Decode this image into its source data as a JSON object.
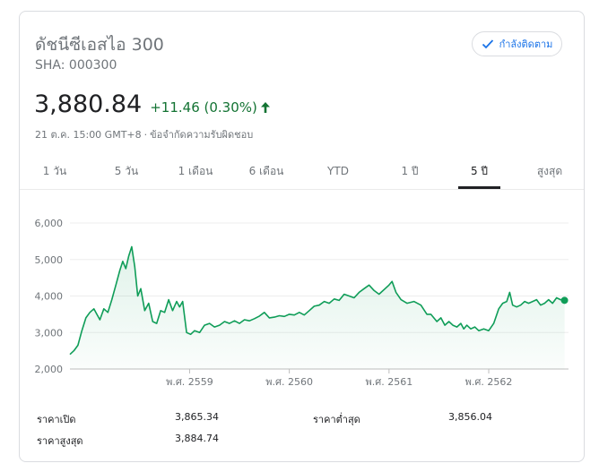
{
  "header": {
    "title": "ดัชนีซีเอสไอ 300",
    "ticker": "SHA: 000300",
    "follow_label": "กำลังติดตาม"
  },
  "quote": {
    "price": "3,880.84",
    "change": "+11.46 (0.30%)",
    "timestamp": "21 ต.ค. 15:00 GMT+8",
    "separator": "·",
    "disclaimer": "ข้อจำกัดความรับผิดชอบ",
    "up_color": "#137333"
  },
  "tabs": [
    {
      "label": "1 วัน",
      "active": false
    },
    {
      "label": "5 วัน",
      "active": false
    },
    {
      "label": "1 เดือน",
      "active": false
    },
    {
      "label": "6 เดือน",
      "active": false
    },
    {
      "label": "YTD",
      "active": false
    },
    {
      "label": "1 ปี",
      "active": false
    },
    {
      "label": "5 ปี",
      "active": true
    },
    {
      "label": "สูงสุด",
      "active": false
    }
  ],
  "chart_data": {
    "type": "line",
    "line_color": "#0f9d58",
    "yticks": [
      {
        "value": 2000,
        "label": "2,000"
      },
      {
        "value": 3000,
        "label": "3,000"
      },
      {
        "value": 4000,
        "label": "4,000"
      },
      {
        "value": 5000,
        "label": "5,000"
      },
      {
        "value": 6000,
        "label": "6,000"
      }
    ],
    "ylim": [
      2000,
      6000
    ],
    "xlim": [
      2557.8,
      2562.8
    ],
    "xticks": [
      {
        "value": 2559,
        "label": "พ.ศ. 2559"
      },
      {
        "value": 2560,
        "label": "พ.ศ. 2560"
      },
      {
        "value": 2561,
        "label": "พ.ศ. 2561"
      },
      {
        "value": 2562,
        "label": "พ.ศ. 2562"
      }
    ],
    "points": [
      [
        2557.8,
        2400
      ],
      [
        2557.84,
        2500
      ],
      [
        2557.88,
        2650
      ],
      [
        2557.92,
        3050
      ],
      [
        2557.96,
        3400
      ],
      [
        2558.0,
        3550
      ],
      [
        2558.04,
        3650
      ],
      [
        2558.07,
        3500
      ],
      [
        2558.1,
        3350
      ],
      [
        2558.14,
        3650
      ],
      [
        2558.18,
        3550
      ],
      [
        2558.22,
        3900
      ],
      [
        2558.26,
        4300
      ],
      [
        2558.3,
        4700
      ],
      [
        2558.33,
        4950
      ],
      [
        2558.36,
        4750
      ],
      [
        2558.39,
        5100
      ],
      [
        2558.42,
        5350
      ],
      [
        2558.45,
        4800
      ],
      [
        2558.48,
        4000
      ],
      [
        2558.51,
        4200
      ],
      [
        2558.55,
        3600
      ],
      [
        2558.59,
        3800
      ],
      [
        2558.63,
        3300
      ],
      [
        2558.67,
        3250
      ],
      [
        2558.71,
        3600
      ],
      [
        2558.75,
        3550
      ],
      [
        2558.79,
        3900
      ],
      [
        2558.83,
        3600
      ],
      [
        2558.87,
        3850
      ],
      [
        2558.9,
        3700
      ],
      [
        2558.93,
        3850
      ],
      [
        2558.97,
        3000
      ],
      [
        2559.01,
        2950
      ],
      [
        2559.05,
        3050
      ],
      [
        2559.1,
        3000
      ],
      [
        2559.15,
        3200
      ],
      [
        2559.2,
        3250
      ],
      [
        2559.25,
        3150
      ],
      [
        2559.3,
        3200
      ],
      [
        2559.35,
        3300
      ],
      [
        2559.4,
        3250
      ],
      [
        2559.45,
        3320
      ],
      [
        2559.5,
        3250
      ],
      [
        2559.55,
        3350
      ],
      [
        2559.6,
        3320
      ],
      [
        2559.65,
        3380
      ],
      [
        2559.7,
        3450
      ],
      [
        2559.75,
        3550
      ],
      [
        2559.8,
        3400
      ],
      [
        2559.85,
        3420
      ],
      [
        2559.9,
        3460
      ],
      [
        2559.95,
        3440
      ],
      [
        2560.0,
        3500
      ],
      [
        2560.05,
        3480
      ],
      [
        2560.1,
        3550
      ],
      [
        2560.15,
        3480
      ],
      [
        2560.2,
        3600
      ],
      [
        2560.25,
        3720
      ],
      [
        2560.3,
        3750
      ],
      [
        2560.35,
        3850
      ],
      [
        2560.4,
        3800
      ],
      [
        2560.45,
        3920
      ],
      [
        2560.5,
        3880
      ],
      [
        2560.55,
        4050
      ],
      [
        2560.6,
        4000
      ],
      [
        2560.65,
        3950
      ],
      [
        2560.7,
        4100
      ],
      [
        2560.75,
        4200
      ],
      [
        2560.8,
        4300
      ],
      [
        2560.85,
        4150
      ],
      [
        2560.9,
        4050
      ],
      [
        2561.0,
        4300
      ],
      [
        2561.03,
        4400
      ],
      [
        2561.07,
        4100
      ],
      [
        2561.12,
        3900
      ],
      [
        2561.18,
        3800
      ],
      [
        2561.25,
        3850
      ],
      [
        2561.32,
        3750
      ],
      [
        2561.38,
        3500
      ],
      [
        2561.42,
        3500
      ],
      [
        2561.48,
        3300
      ],
      [
        2561.52,
        3400
      ],
      [
        2561.56,
        3200
      ],
      [
        2561.6,
        3300
      ],
      [
        2561.64,
        3200
      ],
      [
        2561.68,
        3150
      ],
      [
        2561.72,
        3250
      ],
      [
        2561.75,
        3100
      ],
      [
        2561.78,
        3200
      ],
      [
        2561.82,
        3100
      ],
      [
        2561.86,
        3150
      ],
      [
        2561.9,
        3050
      ],
      [
        2561.95,
        3100
      ],
      [
        2562.0,
        3050
      ],
      [
        2562.05,
        3250
      ],
      [
        2562.1,
        3650
      ],
      [
        2562.14,
        3800
      ],
      [
        2562.18,
        3850
      ],
      [
        2562.21,
        4100
      ],
      [
        2562.24,
        3750
      ],
      [
        2562.28,
        3700
      ],
      [
        2562.32,
        3750
      ],
      [
        2562.36,
        3850
      ],
      [
        2562.4,
        3800
      ],
      [
        2562.44,
        3850
      ],
      [
        2562.48,
        3900
      ],
      [
        2562.52,
        3750
      ],
      [
        2562.56,
        3800
      ],
      [
        2562.6,
        3900
      ],
      [
        2562.64,
        3800
      ],
      [
        2562.68,
        3950
      ],
      [
        2562.72,
        3900
      ],
      [
        2562.76,
        3880.84
      ]
    ]
  },
  "stats": [
    {
      "label": "ราคาเปิด",
      "value": "3,865.34"
    },
    {
      "label": "ราคาต่ำสุด",
      "value": "3,856.04"
    },
    {
      "label": "ราคาสูงสุด",
      "value": "3,884.74"
    }
  ]
}
